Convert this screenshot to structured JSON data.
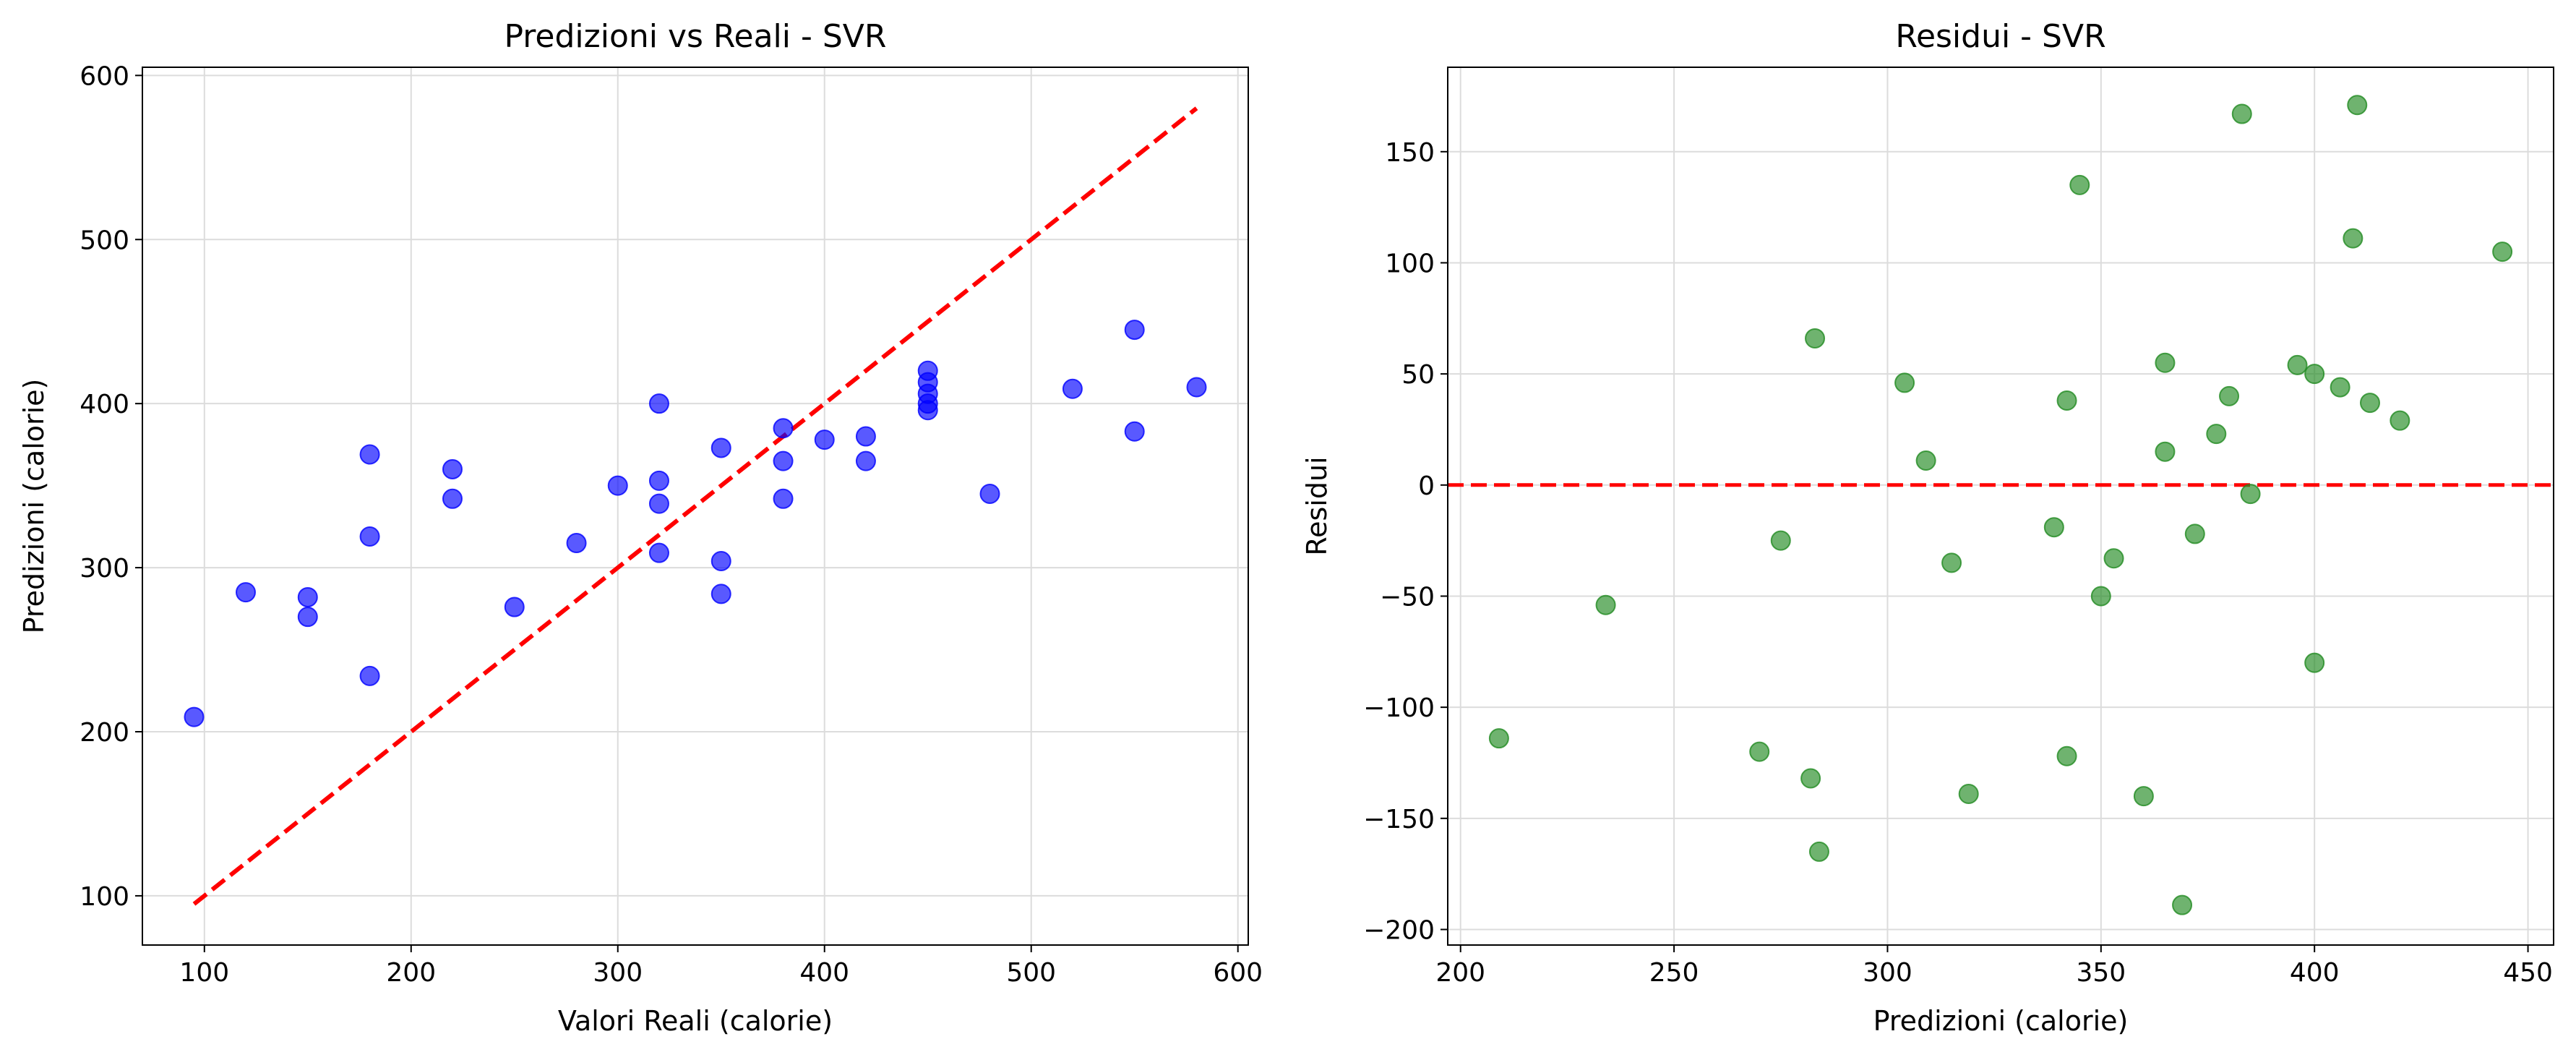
{
  "chart_data": [
    {
      "type": "scatter",
      "title": "Predizioni vs Reali - SVR",
      "xlabel": "Valori Reali (calorie)",
      "ylabel": "Predizioni (calorie)",
      "xlim": [
        70,
        605
      ],
      "ylim": [
        70,
        605
      ],
      "xticks": [
        100,
        200,
        300,
        400,
        500,
        600
      ],
      "yticks": [
        100,
        200,
        300,
        400,
        500,
        600
      ],
      "grid": true,
      "point_color": "#0000ff",
      "reference_line": {
        "x": [
          95,
          580
        ],
        "y": [
          95,
          580
        ],
        "color": "#ff0000",
        "style": "dashed"
      },
      "points": [
        {
          "x": 95,
          "y": 209
        },
        {
          "x": 120,
          "y": 285
        },
        {
          "x": 150,
          "y": 282
        },
        {
          "x": 150,
          "y": 270
        },
        {
          "x": 180,
          "y": 369
        },
        {
          "x": 180,
          "y": 319
        },
        {
          "x": 180,
          "y": 234
        },
        {
          "x": 220,
          "y": 360
        },
        {
          "x": 220,
          "y": 342
        },
        {
          "x": 250,
          "y": 276
        },
        {
          "x": 280,
          "y": 315
        },
        {
          "x": 300,
          "y": 350
        },
        {
          "x": 320,
          "y": 400
        },
        {
          "x": 320,
          "y": 353
        },
        {
          "x": 320,
          "y": 339
        },
        {
          "x": 320,
          "y": 309
        },
        {
          "x": 350,
          "y": 373
        },
        {
          "x": 350,
          "y": 304
        },
        {
          "x": 350,
          "y": 284
        },
        {
          "x": 380,
          "y": 385
        },
        {
          "x": 380,
          "y": 365
        },
        {
          "x": 380,
          "y": 342
        },
        {
          "x": 400,
          "y": 378
        },
        {
          "x": 420,
          "y": 380
        },
        {
          "x": 420,
          "y": 365
        },
        {
          "x": 450,
          "y": 420
        },
        {
          "x": 450,
          "y": 413
        },
        {
          "x": 450,
          "y": 406
        },
        {
          "x": 450,
          "y": 400
        },
        {
          "x": 450,
          "y": 396
        },
        {
          "x": 480,
          "y": 345
        },
        {
          "x": 520,
          "y": 409
        },
        {
          "x": 550,
          "y": 445
        },
        {
          "x": 550,
          "y": 383
        },
        {
          "x": 580,
          "y": 410
        }
      ]
    },
    {
      "type": "scatter",
      "title": "Residui - SVR",
      "xlabel": "Predizioni (calorie)",
      "ylabel": "Residui",
      "xlim": [
        197,
        456
      ],
      "ylim": [
        -207,
        188
      ],
      "xticks": [
        200,
        250,
        300,
        350,
        400,
        450
      ],
      "yticks": [
        -200,
        -150,
        -100,
        -50,
        0,
        50,
        100,
        150
      ],
      "grid": true,
      "point_color": "#228b22",
      "reference_line": {
        "y": 0,
        "color": "#ff0000",
        "style": "dashed"
      },
      "points": [
        {
          "x": 209,
          "y": -114
        },
        {
          "x": 234,
          "y": -54
        },
        {
          "x": 270,
          "y": -120
        },
        {
          "x": 275,
          "y": -25
        },
        {
          "x": 282,
          "y": -132
        },
        {
          "x": 283,
          "y": 66
        },
        {
          "x": 284,
          "y": -165
        },
        {
          "x": 304,
          "y": 46
        },
        {
          "x": 309,
          "y": 11
        },
        {
          "x": 315,
          "y": -35
        },
        {
          "x": 319,
          "y": -139
        },
        {
          "x": 339,
          "y": -19
        },
        {
          "x": 342,
          "y": 38
        },
        {
          "x": 342,
          "y": -122
        },
        {
          "x": 345,
          "y": 135
        },
        {
          "x": 350,
          "y": -50
        },
        {
          "x": 353,
          "y": -33
        },
        {
          "x": 360,
          "y": -140
        },
        {
          "x": 365,
          "y": 55
        },
        {
          "x": 365,
          "y": 15
        },
        {
          "x": 369,
          "y": -189
        },
        {
          "x": 372,
          "y": -22
        },
        {
          "x": 377,
          "y": 23
        },
        {
          "x": 380,
          "y": 40
        },
        {
          "x": 383,
          "y": 167
        },
        {
          "x": 385,
          "y": -4
        },
        {
          "x": 396,
          "y": 54
        },
        {
          "x": 400,
          "y": 50
        },
        {
          "x": 400,
          "y": -80
        },
        {
          "x": 406,
          "y": 44
        },
        {
          "x": 409,
          "y": 111
        },
        {
          "x": 410,
          "y": 171
        },
        {
          "x": 413,
          "y": 37
        },
        {
          "x": 420,
          "y": 29
        },
        {
          "x": 444,
          "y": 105
        }
      ]
    }
  ]
}
